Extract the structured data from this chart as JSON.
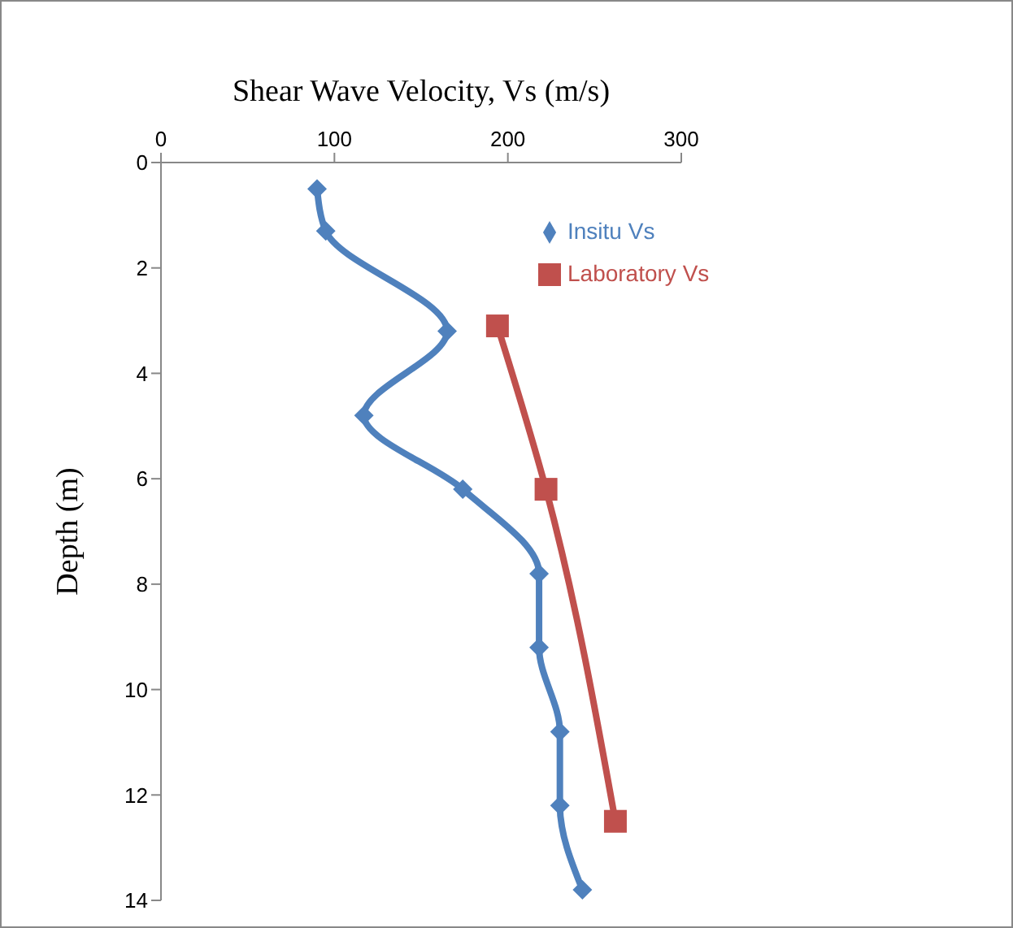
{
  "chart_data": {
    "type": "line",
    "xlabel": "Shear Wave Velocity, Vs (m/s)",
    "ylabel": "Depth (m)",
    "xlim": [
      0,
      300
    ],
    "xticks": [
      0,
      100,
      200,
      300
    ],
    "ylim": [
      14,
      0
    ],
    "yticks": [
      0,
      2,
      4,
      6,
      8,
      10,
      12,
      14
    ],
    "grid": false,
    "legend": "top right",
    "series": [
      {
        "name": "Insitu Vs",
        "color": "#4f81bd",
        "marker": "diamond",
        "x": [
          90,
          95,
          165,
          117,
          174,
          218,
          218,
          230,
          230,
          243
        ],
        "values": [
          0.5,
          1.3,
          3.2,
          4.8,
          6.2,
          7.8,
          9.2,
          10.8,
          12.2,
          13.8
        ]
      },
      {
        "name": "Laboratory Vs",
        "color": "#c0504d",
        "marker": "square",
        "x": [
          194,
          222,
          262
        ],
        "values": [
          3.1,
          6.2,
          12.5
        ]
      }
    ]
  }
}
